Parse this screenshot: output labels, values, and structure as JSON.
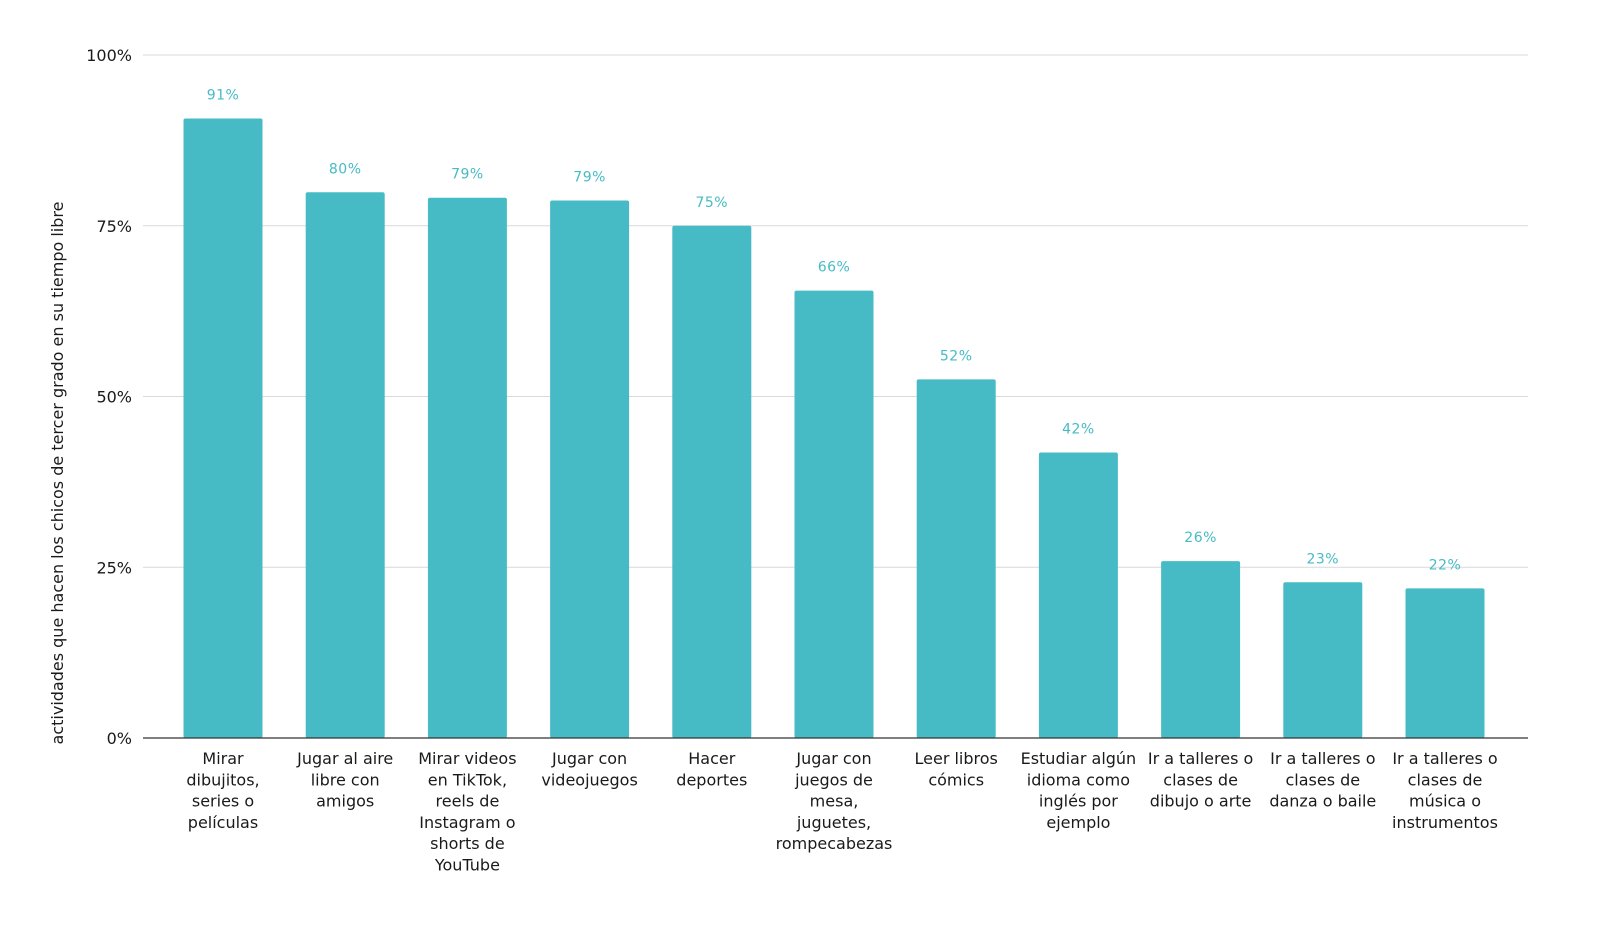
{
  "chart_data": {
    "type": "bar",
    "title": "",
    "xlabel": "",
    "ylabel": "actividades que hacen los chicos de tercer grado en su tiempo libre",
    "ylim": [
      0,
      100
    ],
    "yticks": [
      0,
      25,
      50,
      75,
      100
    ],
    "ytick_labels": [
      "0%",
      "25%",
      "50%",
      "75%",
      "100%"
    ],
    "grid": true,
    "bar_color": "#47BBC5",
    "label_color": "#47BBC5",
    "categories": [
      [
        "Mirar",
        "dibujitos,",
        "series o",
        "películas"
      ],
      [
        "Jugar al aire",
        "libre con",
        "amigos"
      ],
      [
        "Mirar videos",
        "en TikTok,",
        "reels de",
        "Instagram o",
        "shorts de",
        "YouTube"
      ],
      [
        "Jugar con",
        "videojuegos"
      ],
      [
        "Hacer",
        "deportes"
      ],
      [
        "Jugar  con",
        "juegos de",
        "mesa,",
        "juguetes,",
        "rompecabezas"
      ],
      [
        "Leer libros",
        "cómics"
      ],
      [
        "Estudiar algún",
        "idioma como",
        "inglés por",
        "ejemplo"
      ],
      [
        "Ir a talleres o",
        "clases de",
        "dibujo o arte"
      ],
      [
        "Ir a talleres o",
        "clases de",
        "danza o baile"
      ],
      [
        "Ir a talleres o",
        "clases de",
        "música o",
        "instrumentos"
      ]
    ],
    "values": [
      90.7,
      79.9,
      79.1,
      78.7,
      75.0,
      65.5,
      52.5,
      41.8,
      25.9,
      22.8,
      21.9
    ],
    "data_labels": [
      "91%",
      "80%",
      "79%",
      "79%",
      "75%",
      "66%",
      "52%",
      "42%",
      "26%",
      "23%",
      "22%"
    ]
  }
}
